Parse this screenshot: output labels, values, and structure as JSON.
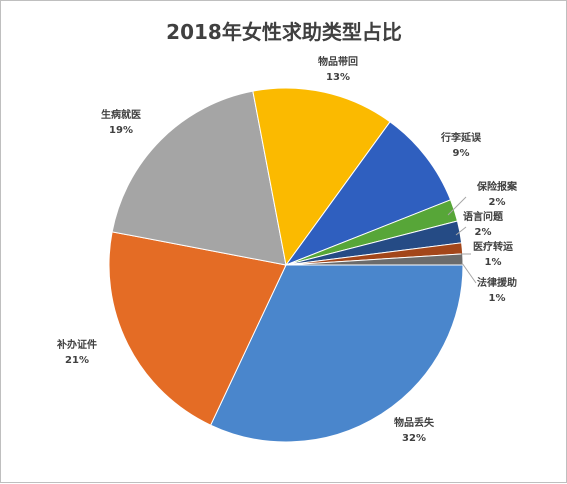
{
  "chart_data": {
    "type": "pie",
    "title": "2018年女性求助类型占比",
    "slices": [
      {
        "name": "物品丢失",
        "value": 32,
        "label": "32%",
        "color": "#4a86cc"
      },
      {
        "name": "补办证件",
        "value": 21,
        "label": "21%",
        "color": "#e46c25"
      },
      {
        "name": "生病就医",
        "value": 19,
        "label": "19%",
        "color": "#a5a5a5"
      },
      {
        "name": "物品带回",
        "value": 13,
        "label": "13%",
        "color": "#fbba00"
      },
      {
        "name": "行李延误",
        "value": 9,
        "label": "9%",
        "color": "#2f5fbf"
      },
      {
        "name": "保险报案",
        "value": 2,
        "label": "2%",
        "color": "#57a638"
      },
      {
        "name": "语言问题",
        "value": 2,
        "label": "2%",
        "color": "#254b85"
      },
      {
        "name": "医疗转运",
        "value": 1,
        "label": "1%",
        "color": "#a3461a"
      },
      {
        "name": "法律援助",
        "value": 1,
        "label": "1%",
        "color": "#6b6b6b"
      }
    ],
    "legend": "none",
    "data_labels": "category-and-percent"
  }
}
